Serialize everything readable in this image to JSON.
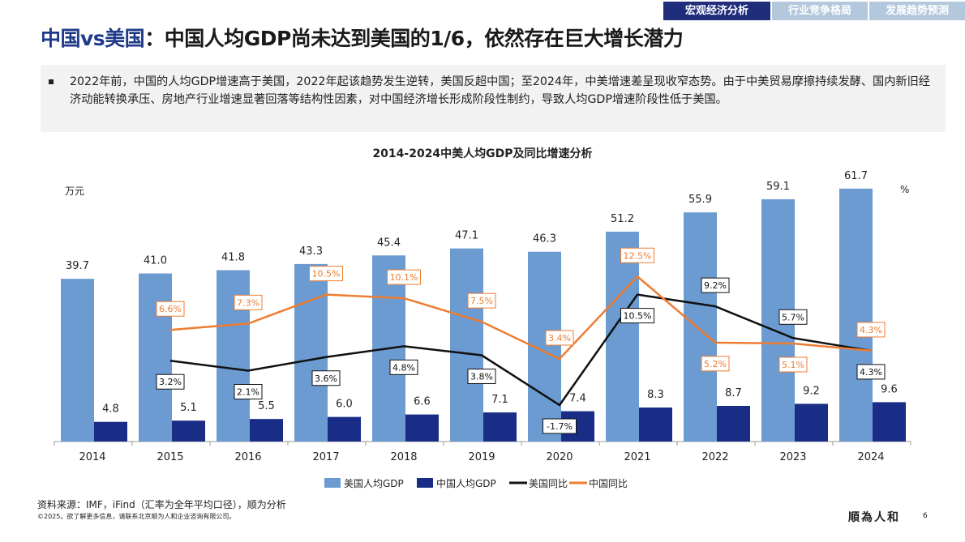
{
  "tabs": [
    {
      "label": "宏观经济分析",
      "active": true
    },
    {
      "label": "行业竞争格局",
      "active": false
    },
    {
      "label": "发展趋势预测",
      "active": false
    }
  ],
  "title": {
    "highlight": "中国vs美国",
    "rest": "：中国人均GDP尚未达到美国的1/6，依然存在巨大增长潜力"
  },
  "summary": "2022年前，中国的人均GDP增速高于美国，2022年起该趋势发生逆转，美国反超中国；至2024年，中美增速差呈现收窄态势。由于中美贸易摩擦持续发酵、国内新旧经济动能转换承压、房地产行业增速显著回落等结构性因素，对中国经济增长形成阶段性制约，导致人均GDP增速阶段性低于美国。",
  "chart_data": {
    "type": "bar+line",
    "title": "2014-2024中美人均GDP及同比增速分析",
    "ylabel_left": "万元",
    "ylabel_right": "%",
    "categories": [
      "2014",
      "2015",
      "2016",
      "2017",
      "2018",
      "2019",
      "2020",
      "2021",
      "2022",
      "2023",
      "2024"
    ],
    "series": [
      {
        "name": "美国人均GDP",
        "type": "bar",
        "axis": "left",
        "color": "#6b9bd1",
        "values": [
          39.7,
          41.0,
          41.8,
          43.3,
          45.4,
          47.1,
          46.3,
          51.2,
          55.9,
          59.1,
          61.7
        ]
      },
      {
        "name": "中国人均GDP",
        "type": "bar",
        "axis": "left",
        "color": "#1a2d86",
        "values": [
          4.8,
          5.1,
          5.5,
          6.0,
          6.6,
          7.1,
          7.4,
          8.3,
          8.7,
          9.2,
          9.6
        ]
      },
      {
        "name": "美国同比",
        "type": "line",
        "axis": "right",
        "color": "#111111",
        "values": [
          null,
          3.2,
          2.1,
          3.6,
          4.8,
          3.8,
          -1.7,
          10.5,
          9.2,
          5.7,
          4.3
        ]
      },
      {
        "name": "中国同比",
        "type": "line",
        "axis": "right",
        "color": "#ed7d31",
        "values": [
          null,
          6.6,
          7.3,
          10.5,
          10.1,
          7.5,
          3.4,
          12.5,
          5.2,
          5.1,
          4.3
        ]
      }
    ],
    "legend": "bottom",
    "grid": false
  },
  "source": "资料来源：IMF，iFind（汇率为全年平均口径），顺为分析",
  "copyright": "©2025。欲了解更多信息，请联系北京顺为人和企业咨询有限公司。",
  "logo": "順為人和",
  "page_number": "6"
}
